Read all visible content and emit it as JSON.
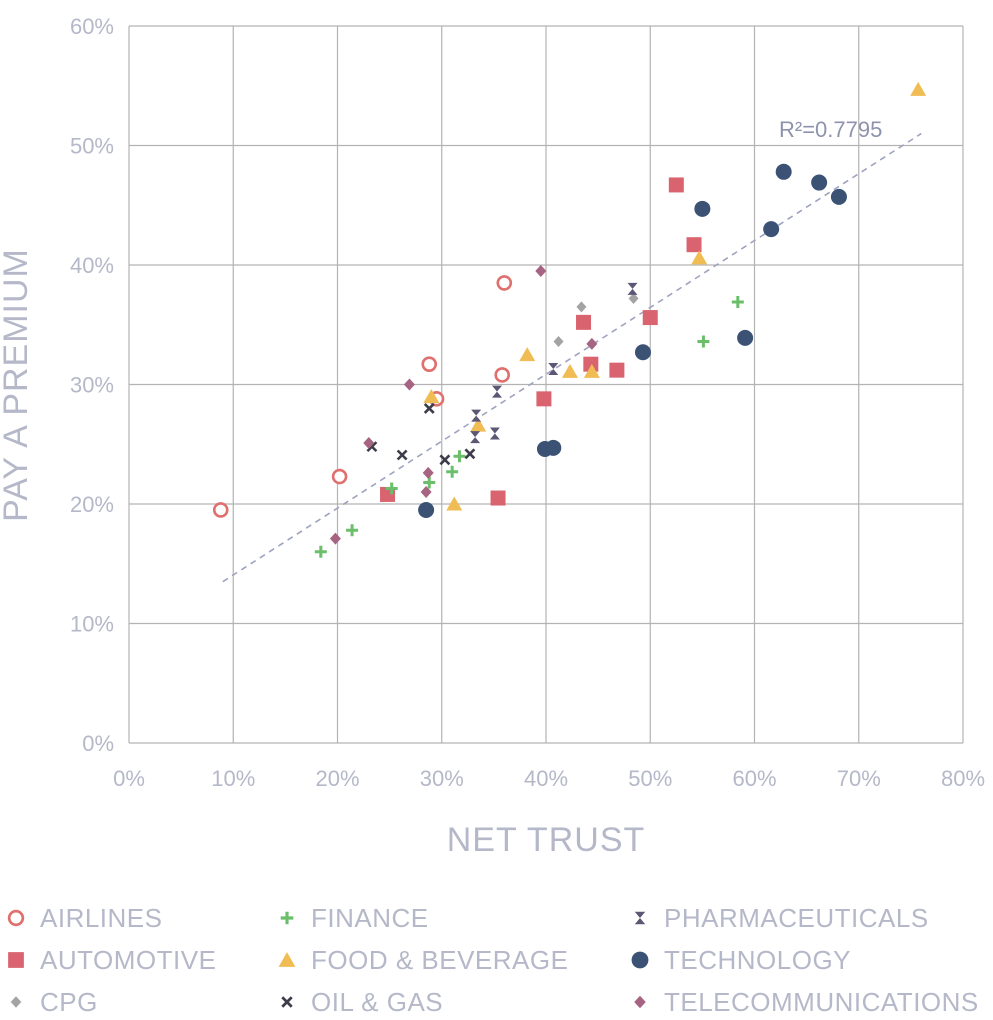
{
  "chart_data": {
    "type": "scatter",
    "xlabel": "NET TRUST",
    "ylabel": "PAY A PREMIUM",
    "xlim": [
      0,
      80
    ],
    "ylim": [
      0,
      60
    ],
    "x_ticks": [
      "0%",
      "10%",
      "20%",
      "30%",
      "40%",
      "50%",
      "60%",
      "70%",
      "80%"
    ],
    "y_ticks": [
      "0%",
      "10%",
      "20%",
      "30%",
      "40%",
      "50%",
      "60%"
    ],
    "grid": true,
    "legend_position": "bottom",
    "trendline": {
      "type": "linear",
      "x_range": [
        9,
        76
      ],
      "y_range": [
        13.5,
        51
      ],
      "label": "R²=0.7795",
      "color": "#9ea3bf"
    },
    "series": [
      {
        "name": "AIRLINES",
        "marker": "circle-open",
        "color": "#e0706e",
        "points": [
          [
            8.8,
            19.5
          ],
          [
            20.2,
            22.3
          ],
          [
            28.8,
            31.7
          ],
          [
            29.5,
            28.8
          ],
          [
            35.8,
            30.8
          ],
          [
            36.0,
            38.5
          ]
        ]
      },
      {
        "name": "AUTOMOTIVE",
        "marker": "square",
        "color": "#d9646f",
        "points": [
          [
            24.8,
            20.8
          ],
          [
            35.4,
            20.5
          ],
          [
            39.8,
            28.8
          ],
          [
            43.6,
            35.2
          ],
          [
            44.3,
            31.7
          ],
          [
            46.8,
            31.2
          ],
          [
            50.0,
            35.6
          ],
          [
            52.5,
            46.7
          ],
          [
            54.2,
            41.7
          ]
        ]
      },
      {
        "name": "CPG",
        "marker": "diamond-small",
        "color": "#a3a3a3",
        "points": [
          [
            41.2,
            33.6
          ],
          [
            43.4,
            36.5
          ],
          [
            48.4,
            37.2
          ]
        ]
      },
      {
        "name": "FINANCE",
        "marker": "plus",
        "color": "#6cbf6a",
        "points": [
          [
            18.4,
            16.0
          ],
          [
            21.4,
            17.8
          ],
          [
            25.2,
            21.3
          ],
          [
            28.8,
            21.8
          ],
          [
            31.0,
            22.7
          ],
          [
            31.7,
            24.0
          ],
          [
            55.1,
            33.6
          ],
          [
            58.4,
            36.9
          ]
        ]
      },
      {
        "name": "FOOD & BEVERAGE",
        "marker": "triangle",
        "color": "#f0bc54",
        "points": [
          [
            29.0,
            29.0
          ],
          [
            31.2,
            20.0
          ],
          [
            33.5,
            26.6
          ],
          [
            38.2,
            32.5
          ],
          [
            42.3,
            31.1
          ],
          [
            44.4,
            31.1
          ],
          [
            54.7,
            40.6
          ],
          [
            75.7,
            54.7
          ]
        ]
      },
      {
        "name": "OIL & GAS",
        "marker": "x",
        "color": "#3c3c4a",
        "points": [
          [
            23.3,
            24.8
          ],
          [
            26.2,
            24.1
          ],
          [
            28.8,
            28.0
          ],
          [
            30.3,
            23.7
          ],
          [
            32.7,
            24.2
          ]
        ]
      },
      {
        "name": "PHARMACEUTICALS",
        "marker": "hourglass",
        "color": "#5b5775",
        "points": [
          [
            33.2,
            25.6
          ],
          [
            33.3,
            27.4
          ],
          [
            35.1,
            25.9
          ],
          [
            35.3,
            29.4
          ],
          [
            40.7,
            31.3
          ],
          [
            48.3,
            38.0
          ]
        ]
      },
      {
        "name": "TECHNOLOGY",
        "marker": "circle-filled",
        "color": "#3b5275",
        "points": [
          [
            28.5,
            19.5
          ],
          [
            39.9,
            24.6
          ],
          [
            40.7,
            24.7
          ],
          [
            49.3,
            32.7
          ],
          [
            55.0,
            44.7
          ],
          [
            59.1,
            33.9
          ],
          [
            61.6,
            43.0
          ],
          [
            62.8,
            47.8
          ],
          [
            66.2,
            46.9
          ],
          [
            68.1,
            45.7
          ]
        ]
      },
      {
        "name": "TELECOMMUNICATIONS",
        "marker": "diamond",
        "color": "#a66482",
        "points": [
          [
            19.8,
            17.1
          ],
          [
            23.0,
            25.1
          ],
          [
            26.9,
            30.0
          ],
          [
            28.5,
            21.0
          ],
          [
            28.7,
            22.6
          ],
          [
            39.5,
            39.5
          ],
          [
            44.4,
            33.4
          ]
        ]
      }
    ]
  }
}
